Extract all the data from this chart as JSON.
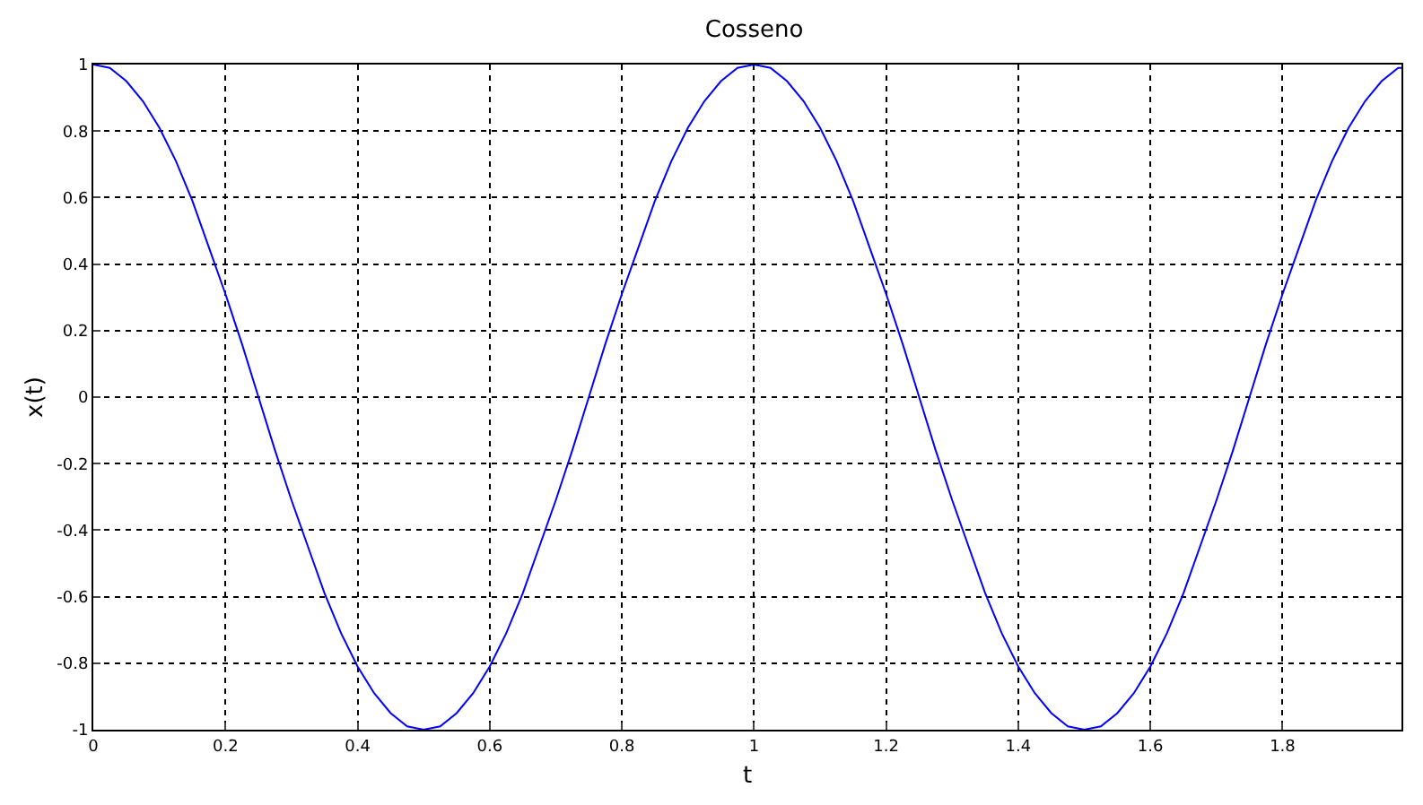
{
  "chart_data": {
    "type": "line",
    "title": "Cosseno",
    "xlabel": "t",
    "ylabel": "x(t)",
    "series": [
      {
        "color": "#0000ff",
        "x": [
          0,
          0.025,
          0.05,
          0.075,
          0.1,
          0.125,
          0.15,
          0.175,
          0.2,
          0.225,
          0.25,
          0.275,
          0.3,
          0.325,
          0.35,
          0.375,
          0.4,
          0.425,
          0.45,
          0.475,
          0.5,
          0.525,
          0.55,
          0.575,
          0.6,
          0.625,
          0.65,
          0.675,
          0.7,
          0.725,
          0.75,
          0.775,
          0.8,
          0.825,
          0.85,
          0.875,
          0.9,
          0.925,
          0.95,
          0.975,
          1,
          1.025,
          1.05,
          1.075,
          1.1,
          1.125,
          1.15,
          1.175,
          1.2,
          1.225,
          1.25,
          1.275,
          1.3,
          1.325,
          1.35,
          1.375,
          1.4,
          1.425,
          1.45,
          1.475,
          1.5,
          1.525,
          1.55,
          1.575,
          1.6,
          1.625,
          1.65,
          1.675,
          1.7,
          1.725,
          1.75,
          1.775,
          1.8,
          1.825,
          1.85,
          1.875,
          1.9,
          1.925,
          1.95,
          1.975,
          1.98
        ],
        "values": [
          1,
          0.99,
          0.95,
          0.89,
          0.81,
          0.71,
          0.59,
          0.45,
          0.31,
          0.16,
          0,
          -0.16,
          -0.31,
          -0.45,
          -0.59,
          -0.71,
          -0.81,
          -0.89,
          -0.95,
          -0.99,
          -1,
          -0.99,
          -0.95,
          -0.89,
          -0.81,
          -0.71,
          -0.59,
          -0.45,
          -0.31,
          -0.16,
          0,
          0.16,
          0.31,
          0.45,
          0.59,
          0.71,
          0.81,
          0.89,
          0.95,
          0.99,
          1,
          0.99,
          0.95,
          0.89,
          0.81,
          0.71,
          0.59,
          0.45,
          0.31,
          0.16,
          0,
          -0.16,
          -0.31,
          -0.45,
          -0.59,
          -0.71,
          -0.81,
          -0.89,
          -0.95,
          -0.99,
          -1,
          -0.99,
          -0.95,
          -0.89,
          -0.81,
          -0.71,
          -0.59,
          -0.45,
          -0.31,
          -0.16,
          0,
          0.16,
          0.31,
          0.45,
          0.59,
          0.71,
          0.81,
          0.89,
          0.95,
          0.99,
          0.99
        ]
      }
    ],
    "xlim": [
      0,
      1.98
    ],
    "xticks": [
      0,
      0.2,
      0.4,
      0.6,
      0.8,
      1,
      1.2,
      1.4,
      1.6,
      1.8
    ],
    "ylim": [
      -1,
      1
    ],
    "yticks": [
      -1,
      -0.8,
      -0.6,
      -0.4,
      -0.2,
      0,
      0.2,
      0.4,
      0.6,
      0.8,
      1
    ],
    "grid": true,
    "marker": "none",
    "line_style": "solid"
  }
}
